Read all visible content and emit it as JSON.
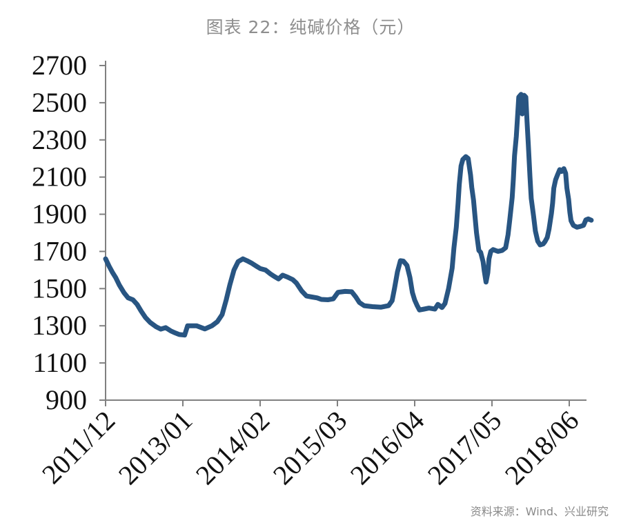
{
  "header": {
    "title": "图表 22：纯碱价格（元）"
  },
  "footer": {
    "source": "资料来源：Wind、兴业研究"
  },
  "colors": {
    "line": "#285582",
    "axis": "#808080",
    "tick_label": "#111111",
    "muted_text": "#8a8a8a",
    "background": "#ffffff"
  },
  "chart_data": {
    "type": "line",
    "title": "图表 22：纯碱价格（元）",
    "xlabel": "",
    "ylabel": "",
    "unit": "元",
    "grid": false,
    "legend_position": "none",
    "ylim": [
      900,
      2700
    ],
    "y_ticks": [
      900,
      1100,
      1300,
      1500,
      1700,
      1900,
      2100,
      2300,
      2500,
      2700
    ],
    "x_axis_note": "months offset measured from first tick 2011/12; ticks every 13 months",
    "xlim_months": [
      0,
      80.9
    ],
    "x_ticks": [
      {
        "m": 0,
        "label": "2011/12"
      },
      {
        "m": 13,
        "label": "2013/01"
      },
      {
        "m": 26,
        "label": "2014/02"
      },
      {
        "m": 39,
        "label": "2015/03"
      },
      {
        "m": 52,
        "label": "2016/04"
      },
      {
        "m": 65,
        "label": "2017/05"
      },
      {
        "m": 78,
        "label": "2018/06"
      }
    ],
    "series": [
      {
        "name": "纯碱价格（元）",
        "color": "#285582",
        "points": [
          [
            0,
            1660
          ],
          [
            0.6,
            1620
          ],
          [
            1.2,
            1585
          ],
          [
            1.7,
            1560
          ],
          [
            2.3,
            1520
          ],
          [
            3.1,
            1478
          ],
          [
            3.8,
            1450
          ],
          [
            4.6,
            1440
          ],
          [
            5.3,
            1415
          ],
          [
            6.0,
            1378
          ],
          [
            6.7,
            1345
          ],
          [
            7.5,
            1318
          ],
          [
            8.5,
            1295
          ],
          [
            9.3,
            1282
          ],
          [
            10.1,
            1290
          ],
          [
            11.0,
            1272
          ],
          [
            11.7,
            1262
          ],
          [
            12.4,
            1253
          ],
          [
            13.3,
            1250
          ],
          [
            13.8,
            1300
          ],
          [
            15.3,
            1300
          ],
          [
            16.7,
            1283
          ],
          [
            17.9,
            1300
          ],
          [
            18.8,
            1322
          ],
          [
            19.6,
            1360
          ],
          [
            20.3,
            1440
          ],
          [
            20.9,
            1520
          ],
          [
            21.6,
            1600
          ],
          [
            22.3,
            1645
          ],
          [
            23.1,
            1660
          ],
          [
            23.8,
            1650
          ],
          [
            24.5,
            1638
          ],
          [
            25.4,
            1620
          ],
          [
            26.0,
            1608
          ],
          [
            26.9,
            1600
          ],
          [
            27.7,
            1580
          ],
          [
            28.4,
            1565
          ],
          [
            29.1,
            1552
          ],
          [
            29.8,
            1572
          ],
          [
            30.6,
            1562
          ],
          [
            31.5,
            1548
          ],
          [
            32.1,
            1530
          ],
          [
            33.0,
            1487
          ],
          [
            33.8,
            1460
          ],
          [
            34.7,
            1455
          ],
          [
            35.6,
            1450
          ],
          [
            36.3,
            1442
          ],
          [
            37.4,
            1440
          ],
          [
            38.3,
            1445
          ],
          [
            39.1,
            1480
          ],
          [
            40.3,
            1485
          ],
          [
            41.4,
            1483
          ],
          [
            42.1,
            1455
          ],
          [
            42.7,
            1425
          ],
          [
            43.5,
            1408
          ],
          [
            44.9,
            1403
          ],
          [
            46.3,
            1400
          ],
          [
            47.6,
            1408
          ],
          [
            48.2,
            1435
          ],
          [
            48.6,
            1500
          ],
          [
            49.1,
            1590
          ],
          [
            49.6,
            1650
          ],
          [
            50.1,
            1648
          ],
          [
            50.7,
            1625
          ],
          [
            51.2,
            1560
          ],
          [
            51.6,
            1480
          ],
          [
            52.0,
            1438
          ],
          [
            52.4,
            1410
          ],
          [
            52.8,
            1385
          ],
          [
            53.6,
            1390
          ],
          [
            54.4,
            1395
          ],
          [
            55.4,
            1390
          ],
          [
            55.9,
            1415
          ],
          [
            56.6,
            1398
          ],
          [
            57.1,
            1420
          ],
          [
            57.7,
            1500
          ],
          [
            58.3,
            1610
          ],
          [
            58.6,
            1720
          ],
          [
            59.0,
            1830
          ],
          [
            59.3,
            1960
          ],
          [
            59.5,
            2060
          ],
          [
            59.8,
            2160
          ],
          [
            60.1,
            2195
          ],
          [
            60.6,
            2210
          ],
          [
            61.0,
            2200
          ],
          [
            61.4,
            2110
          ],
          [
            61.6,
            2045
          ],
          [
            61.9,
            1975
          ],
          [
            62.1,
            1905
          ],
          [
            62.4,
            1800
          ],
          [
            62.8,
            1705
          ],
          [
            63.1,
            1695
          ],
          [
            63.5,
            1645
          ],
          [
            63.7,
            1595
          ],
          [
            64.0,
            1535
          ],
          [
            64.3,
            1585
          ],
          [
            64.5,
            1660
          ],
          [
            64.8,
            1700
          ],
          [
            65.2,
            1710
          ],
          [
            66.0,
            1700
          ],
          [
            66.7,
            1705
          ],
          [
            67.3,
            1720
          ],
          [
            67.7,
            1790
          ],
          [
            68.0,
            1870
          ],
          [
            68.4,
            1990
          ],
          [
            68.6,
            2090
          ],
          [
            68.8,
            2215
          ],
          [
            69.1,
            2320
          ],
          [
            69.3,
            2420
          ],
          [
            69.5,
            2530
          ],
          [
            69.9,
            2545
          ],
          [
            70.1,
            2440
          ],
          [
            70.4,
            2540
          ],
          [
            70.7,
            2530
          ],
          [
            70.9,
            2400
          ],
          [
            71.1,
            2280
          ],
          [
            71.4,
            2100
          ],
          [
            71.6,
            1985
          ],
          [
            72.0,
            1890
          ],
          [
            72.3,
            1810
          ],
          [
            72.7,
            1755
          ],
          [
            73.1,
            1735
          ],
          [
            73.6,
            1740
          ],
          [
            73.9,
            1752
          ],
          [
            74.3,
            1775
          ],
          [
            74.6,
            1820
          ],
          [
            75.0,
            1905
          ],
          [
            75.2,
            1960
          ],
          [
            75.4,
            2040
          ],
          [
            75.7,
            2085
          ],
          [
            76.0,
            2110
          ],
          [
            76.4,
            2140
          ],
          [
            76.7,
            2130
          ],
          [
            77.1,
            2145
          ],
          [
            77.4,
            2120
          ],
          [
            77.6,
            2040
          ],
          [
            77.9,
            1980
          ],
          [
            78.1,
            1910
          ],
          [
            78.3,
            1865
          ],
          [
            78.7,
            1840
          ],
          [
            79.3,
            1830
          ],
          [
            79.9,
            1835
          ],
          [
            80.4,
            1840
          ],
          [
            80.8,
            1870
          ],
          [
            81.2,
            1875
          ],
          [
            81.7,
            1868
          ]
        ]
      }
    ],
    "source": "资料来源：Wind、兴业研究"
  }
}
